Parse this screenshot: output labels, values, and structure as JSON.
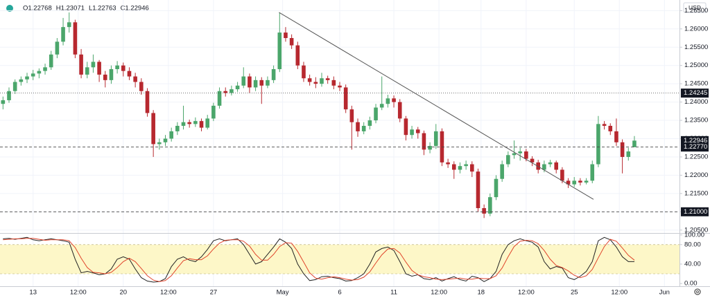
{
  "header": {
    "ohlc": [
      "O1.22768",
      "H1.23071",
      "L1.22763",
      "C1.22946"
    ]
  },
  "chart_data": [
    {
      "type": "candlestick",
      "currency": "USD",
      "up_color": "#4ba66b",
      "down_color": "#b7282f",
      "grid": true,
      "xlim": [
        -0.5,
        112.5
      ],
      "xticks": [
        {
          "value": 5,
          "label": "13"
        },
        {
          "value": 12.5,
          "label": "12:00"
        },
        {
          "value": 20,
          "label": "20"
        },
        {
          "value": 27.5,
          "label": "12:00"
        },
        {
          "value": 35,
          "label": "27"
        },
        {
          "value": 46.5,
          "label": "May"
        },
        {
          "value": 56,
          "label": "6"
        },
        {
          "value": 65,
          "label": "11"
        },
        {
          "value": 72.5,
          "label": "12:00"
        },
        {
          "value": 79.5,
          "label": "18"
        },
        {
          "value": 87,
          "label": "12:00"
        },
        {
          "value": 95,
          "label": "25"
        },
        {
          "value": 102.5,
          "label": "12:00"
        },
        {
          "value": 110,
          "label": "Jun"
        }
      ],
      "ylim": [
        1.2042,
        1.2679
      ],
      "yticks": [
        {
          "value": 1.205,
          "label": "1.20500"
        },
        {
          "value": 1.21,
          "label": "1.21000"
        },
        {
          "value": 1.215,
          "label": "1.21500"
        },
        {
          "value": 1.22,
          "label": "1.22000"
        },
        {
          "value": 1.225,
          "label": "1.22500"
        },
        {
          "value": 1.23,
          "label": "1.23000"
        },
        {
          "value": 1.235,
          "label": "1.23500"
        },
        {
          "value": 1.24,
          "label": "1.24000"
        },
        {
          "value": 1.245,
          "label": "1.24500"
        },
        {
          "value": 1.25,
          "label": "1.25000"
        },
        {
          "value": 1.255,
          "label": "1.25500"
        },
        {
          "value": 1.26,
          "label": "1.26000"
        },
        {
          "value": 1.265,
          "label": "1.26500"
        }
      ],
      "levels": [
        {
          "value": 1.24245,
          "label": "1.24245",
          "style": "dotted"
        },
        {
          "value": 1.22946,
          "label": "1.22946",
          "style": "none"
        },
        {
          "value": 1.2277,
          "label": "1.22770",
          "style": "dashed"
        },
        {
          "value": 1.21,
          "label": "1.21000",
          "style": "dashed"
        }
      ],
      "trendline": {
        "x": [
          45.9,
          98.2
        ],
        "y": [
          1.2645,
          1.2134
        ],
        "color": "#555555"
      },
      "candles": [
        [
          1.2395,
          1.2415,
          1.238,
          1.2405
        ],
        [
          1.2405,
          1.244,
          1.2398,
          1.243
        ],
        [
          1.243,
          1.2462,
          1.2422,
          1.2455
        ],
        [
          1.2455,
          1.247,
          1.2445,
          1.2462
        ],
        [
          1.2462,
          1.248,
          1.2452,
          1.247
        ],
        [
          1.247,
          1.2488,
          1.246,
          1.2478
        ],
        [
          1.2478,
          1.2492,
          1.2465,
          1.2485
        ],
        [
          1.2485,
          1.2505,
          1.2475,
          1.2495
        ],
        [
          1.2495,
          1.254,
          1.2488,
          1.253
        ],
        [
          1.253,
          1.2575,
          1.252,
          1.2565
        ],
        [
          1.2565,
          1.263,
          1.2555,
          1.2605
        ],
        [
          1.2605,
          1.2645,
          1.259,
          1.2618
        ],
        [
          1.2618,
          1.2625,
          1.252,
          1.253
        ],
        [
          1.253,
          1.2545,
          1.2465,
          1.2475
        ],
        [
          1.2475,
          1.251,
          1.2465,
          1.2495
        ],
        [
          1.2495,
          1.253,
          1.248,
          1.251
        ],
        [
          1.251,
          1.2515,
          1.2455,
          1.2475
        ],
        [
          1.2475,
          1.2485,
          1.244,
          1.246
        ],
        [
          1.246,
          1.25,
          1.245,
          1.249
        ],
        [
          1.249,
          1.2512,
          1.2478,
          1.25
        ],
        [
          1.25,
          1.2508,
          1.247,
          1.2485
        ],
        [
          1.2485,
          1.2495,
          1.246,
          1.247
        ],
        [
          1.247,
          1.248,
          1.244,
          1.2455
        ],
        [
          1.2455,
          1.2465,
          1.242,
          1.243
        ],
        [
          1.243,
          1.2438,
          1.236,
          1.237
        ],
        [
          1.237,
          1.2378,
          1.225,
          1.2285
        ],
        [
          1.2285,
          1.23,
          1.227,
          1.229
        ],
        [
          1.229,
          1.231,
          1.228,
          1.23
        ],
        [
          1.23,
          1.233,
          1.2292,
          1.232
        ],
        [
          1.232,
          1.2345,
          1.231,
          1.2335
        ],
        [
          1.2335,
          1.239,
          1.2325,
          1.2345
        ],
        [
          1.2345,
          1.2352,
          1.233,
          1.234
        ],
        [
          1.234,
          1.2358,
          1.2332,
          1.2348
        ],
        [
          1.2348,
          1.2355,
          1.232,
          1.233
        ],
        [
          1.233,
          1.2365,
          1.2325,
          1.2355
        ],
        [
          1.2355,
          1.2398,
          1.2348,
          1.239
        ],
        [
          1.239,
          1.244,
          1.2382,
          1.243
        ],
        [
          1.243,
          1.244,
          1.2415,
          1.2425
        ],
        [
          1.2425,
          1.2445,
          1.2418,
          1.2435
        ],
        [
          1.2435,
          1.2455,
          1.2428,
          1.2445
        ],
        [
          1.2445,
          1.2495,
          1.2438,
          1.247
        ],
        [
          1.247,
          1.2478,
          1.2425,
          1.244
        ],
        [
          1.244,
          1.247,
          1.243,
          1.246
        ],
        [
          1.246,
          1.2468,
          1.2395,
          1.2445
        ],
        [
          1.2445,
          1.247,
          1.2438,
          1.246
        ],
        [
          1.246,
          1.25,
          1.2452,
          1.249
        ],
        [
          1.249,
          1.2645,
          1.2482,
          1.259
        ],
        [
          1.259,
          1.2605,
          1.2565,
          1.2575
        ],
        [
          1.2575,
          1.2585,
          1.2545,
          1.2555
        ],
        [
          1.2555,
          1.2565,
          1.249,
          1.25
        ],
        [
          1.25,
          1.251,
          1.2455,
          1.2465
        ],
        [
          1.2465,
          1.2475,
          1.2445,
          1.2455
        ],
        [
          1.2455,
          1.2468,
          1.2438,
          1.245
        ],
        [
          1.245,
          1.248,
          1.2442,
          1.2465
        ],
        [
          1.2465,
          1.2472,
          1.245,
          1.246
        ],
        [
          1.246,
          1.247,
          1.2435,
          1.2445
        ],
        [
          1.2445,
          1.2455,
          1.243,
          1.244
        ],
        [
          1.244,
          1.2448,
          1.237,
          1.238
        ],
        [
          1.238,
          1.239,
          1.227,
          1.2345
        ],
        [
          1.2345,
          1.2355,
          1.2305,
          1.232
        ],
        [
          1.232,
          1.2345,
          1.2312,
          1.2335
        ],
        [
          1.2335,
          1.236,
          1.2325,
          1.235
        ],
        [
          1.235,
          1.2395,
          1.2342,
          1.2385
        ],
        [
          1.2385,
          1.247,
          1.2378,
          1.2395
        ],
        [
          1.2395,
          1.242,
          1.2385,
          1.241
        ],
        [
          1.241,
          1.2418,
          1.2385,
          1.24
        ],
        [
          1.24,
          1.2408,
          1.2345,
          1.2355
        ],
        [
          1.2355,
          1.2362,
          1.2295,
          1.231
        ],
        [
          1.231,
          1.2335,
          1.23,
          1.2325
        ],
        [
          1.2325,
          1.2332,
          1.23,
          1.2315
        ],
        [
          1.2315,
          1.2322,
          1.2255,
          1.227
        ],
        [
          1.227,
          1.229,
          1.226,
          1.228
        ],
        [
          1.228,
          1.234,
          1.2272,
          1.232
        ],
        [
          1.232,
          1.2328,
          1.2225,
          1.2235
        ],
        [
          1.2235,
          1.2245,
          1.222,
          1.223
        ],
        [
          1.223,
          1.2238,
          1.219,
          1.2215
        ],
        [
          1.2215,
          1.2235,
          1.2205,
          1.2225
        ],
        [
          1.2225,
          1.224,
          1.2215,
          1.223
        ],
        [
          1.223,
          1.2238,
          1.2195,
          1.221
        ],
        [
          1.221,
          1.2218,
          1.21,
          1.211
        ],
        [
          1.211,
          1.212,
          1.2083,
          1.2095
        ],
        [
          1.2095,
          1.215,
          1.2088,
          1.214
        ],
        [
          1.214,
          1.22,
          1.2132,
          1.219
        ],
        [
          1.219,
          1.224,
          1.2182,
          1.223
        ],
        [
          1.223,
          1.2265,
          1.2222,
          1.2255
        ],
        [
          1.2255,
          1.2295,
          1.2245,
          1.226
        ],
        [
          1.226,
          1.2275,
          1.224,
          1.2265
        ],
        [
          1.2265,
          1.2272,
          1.2238,
          1.2245
        ],
        [
          1.2245,
          1.2252,
          1.2225,
          1.2235
        ],
        [
          1.2235,
          1.2242,
          1.2205,
          1.2215
        ],
        [
          1.2215,
          1.224,
          1.2208,
          1.223
        ],
        [
          1.223,
          1.2242,
          1.2222,
          1.2235
        ],
        [
          1.2235,
          1.224,
          1.2205,
          1.2215
        ],
        [
          1.2215,
          1.2222,
          1.2178,
          1.2185
        ],
        [
          1.2185,
          1.2192,
          1.2165,
          1.2175
        ],
        [
          1.2175,
          1.2195,
          1.2168,
          1.2185
        ],
        [
          1.2185,
          1.2192,
          1.2172,
          1.218
        ],
        [
          1.218,
          1.2192,
          1.2175,
          1.2185
        ],
        [
          1.2185,
          1.224,
          1.2178,
          1.223
        ],
        [
          1.223,
          1.2362,
          1.2222,
          1.234
        ],
        [
          1.234,
          1.2348,
          1.2325,
          1.2335
        ],
        [
          1.2335,
          1.2342,
          1.231,
          1.232
        ],
        [
          1.232,
          1.2355,
          1.228,
          1.229
        ],
        [
          1.229,
          1.2298,
          1.2205,
          1.225
        ],
        [
          1.225,
          1.2275,
          1.224,
          1.2265
        ],
        [
          1.22768,
          1.23071,
          1.22763,
          1.22946
        ]
      ]
    },
    {
      "type": "line",
      "ylim": [
        -5.6,
        102.5
      ],
      "yticks": [
        {
          "value": 0,
          "label": "0.00"
        },
        {
          "value": 40,
          "label": "40.00"
        },
        {
          "value": 80,
          "label": "80.00"
        },
        {
          "value": 100,
          "label": "100.00"
        }
      ],
      "band": [
        20,
        80
      ],
      "band_color": "#fdf7c8",
      "series": [
        {
          "color": "#222222",
          "values": [
            92,
            93,
            91,
            93,
            95,
            90,
            88,
            90,
            92,
            90,
            88,
            85,
            50,
            22,
            25,
            22,
            18,
            20,
            30,
            50,
            55,
            50,
            30,
            12,
            5,
            3,
            4,
            10,
            35,
            50,
            55,
            48,
            45,
            55,
            70,
            88,
            92,
            88,
            90,
            92,
            80,
            60,
            40,
            45,
            60,
            75,
            92,
            85,
            72,
            40,
            20,
            6,
            8,
            14,
            15,
            12,
            10,
            5,
            6,
            12,
            20,
            40,
            65,
            72,
            75,
            68,
            45,
            20,
            15,
            18,
            10,
            8,
            12,
            5,
            10,
            14,
            8,
            5,
            15,
            12,
            4,
            10,
            25,
            60,
            80,
            88,
            92,
            88,
            85,
            75,
            45,
            30,
            35,
            32,
            12,
            8,
            15,
            25,
            45,
            88,
            95,
            90,
            75,
            55,
            45,
            45
          ]
        },
        {
          "color": "#e0442b",
          "values": [
            90,
            91,
            92,
            92,
            93,
            93,
            91,
            89,
            90,
            90,
            90,
            88,
            74,
            52,
            33,
            23,
            22,
            20,
            23,
            33,
            45,
            52,
            45,
            31,
            16,
            7,
            4,
            6,
            16,
            32,
            47,
            51,
            49,
            49,
            57,
            71,
            83,
            89,
            90,
            90,
            87,
            77,
            60,
            48,
            48,
            60,
            76,
            84,
            83,
            66,
            44,
            22,
            11,
            9,
            12,
            14,
            12,
            9,
            7,
            8,
            13,
            24,
            42,
            59,
            71,
            72,
            63,
            44,
            27,
            18,
            14,
            12,
            9,
            8,
            9,
            10,
            11,
            9,
            9,
            11,
            10,
            10,
            16,
            32,
            55,
            76,
            87,
            89,
            88,
            82,
            68,
            50,
            37,
            33,
            26,
            17,
            12,
            16,
            29,
            53,
            76,
            91,
            87,
            73,
            58,
            48
          ]
        }
      ]
    }
  ]
}
